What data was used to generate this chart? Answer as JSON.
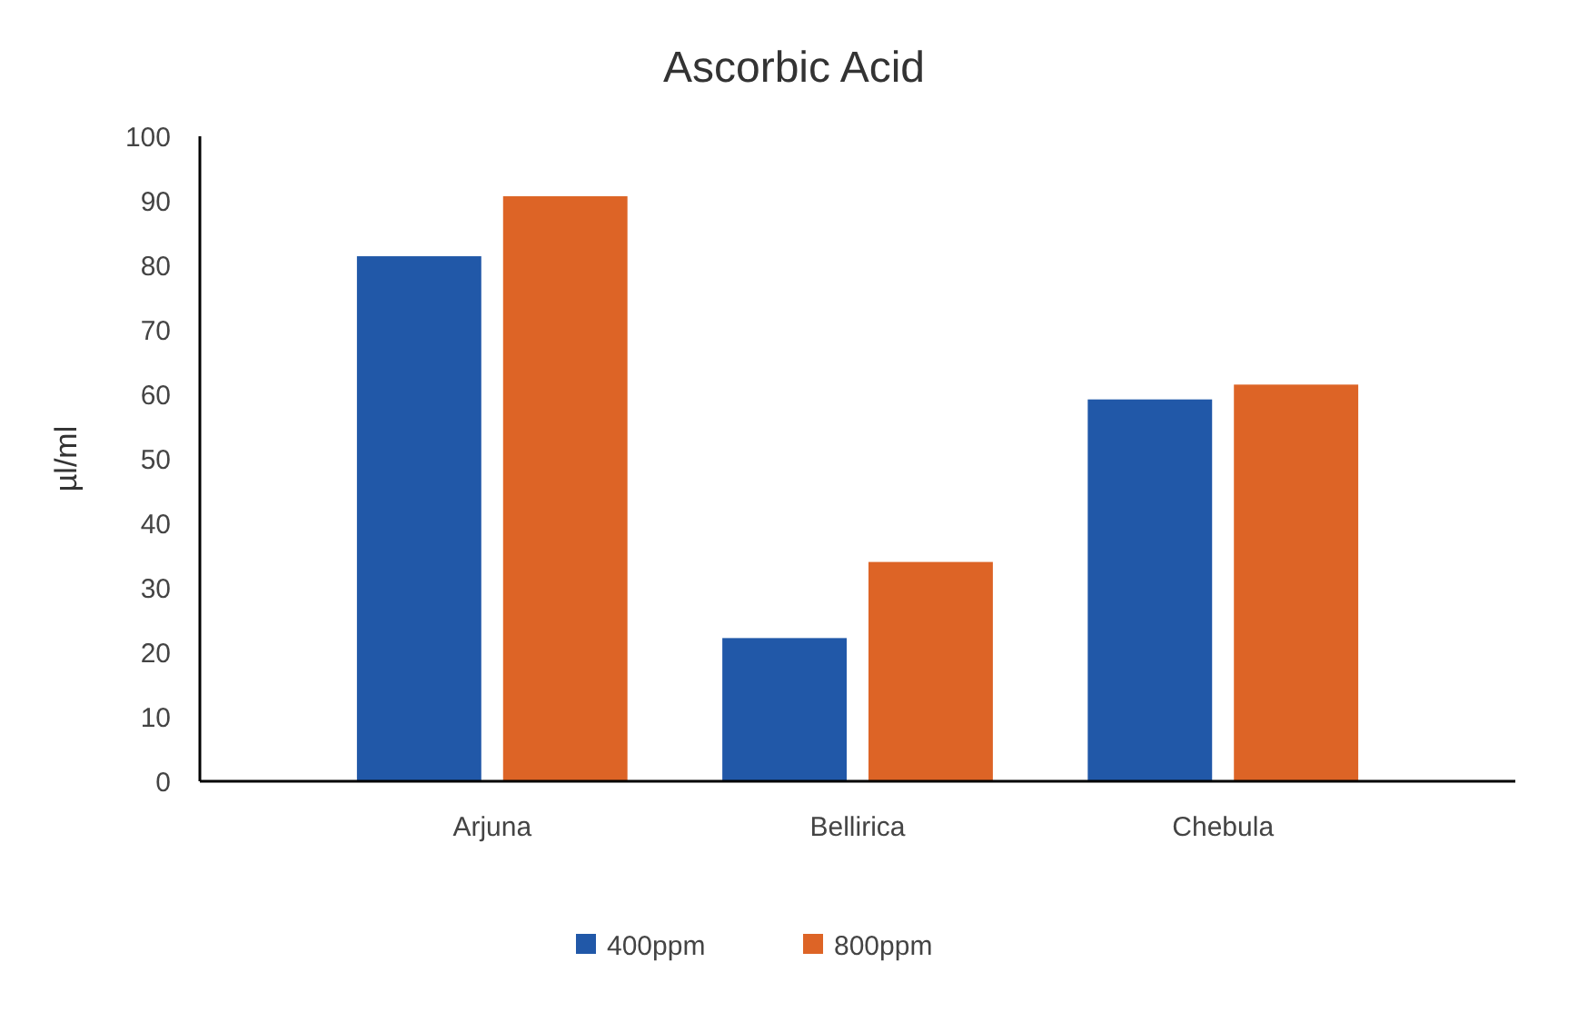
{
  "chart_data": {
    "type": "bar",
    "title": "Ascorbic Acid",
    "ylabel": "µl/ml",
    "categories": [
      "Arjuna",
      "Bellirica",
      "Chebula"
    ],
    "series": [
      {
        "name": "400ppm",
        "color": "#2158a8",
        "values": [
          81.4,
          22.2,
          59.2
        ]
      },
      {
        "name": "800ppm",
        "color": "#dd6426",
        "values": [
          90.7,
          34,
          61.5
        ]
      }
    ],
    "ylim": [
      0,
      100
    ],
    "yticks": [
      0,
      10,
      20,
      30,
      40,
      50,
      60,
      70,
      80,
      90,
      100
    ],
    "legend": "bottom"
  }
}
